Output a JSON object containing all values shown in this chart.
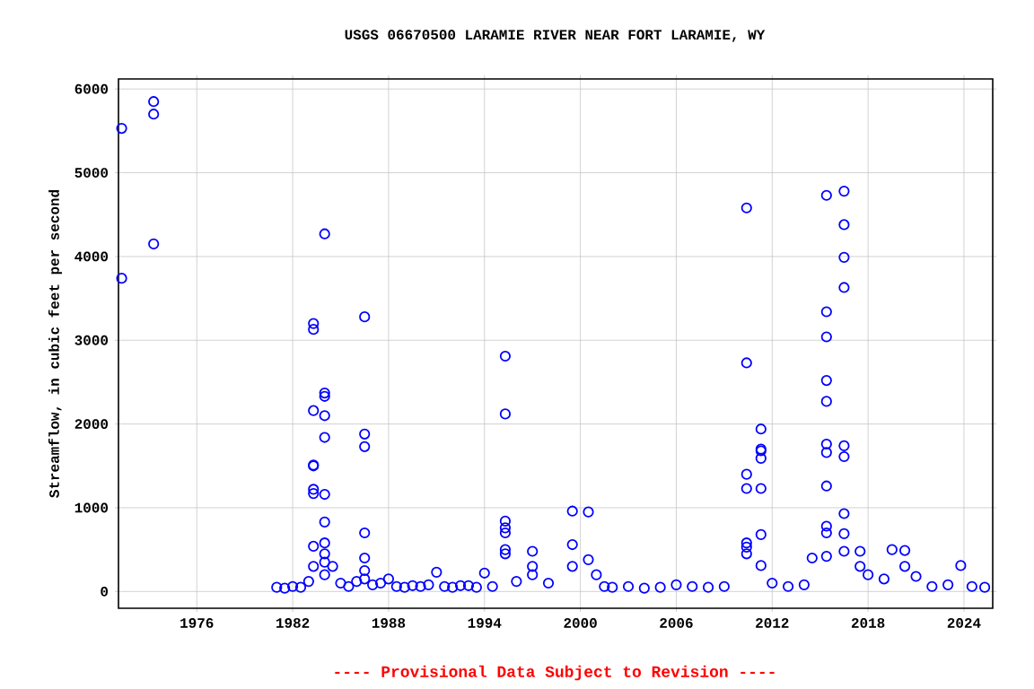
{
  "chart_data": {
    "type": "scatter",
    "title": "USGS 06670500 LARAMIE RIVER NEAR FORT LARAMIE, WY",
    "ylabel": "Streamflow, in cubic feet per second",
    "annotations": [
      "---- Provisional Data Subject to Revision ----"
    ],
    "xlim": [
      1971.1,
      2025.8
    ],
    "ylim": [
      -200,
      6120
    ],
    "xticks": [
      1976,
      1982,
      1988,
      1994,
      2000,
      2006,
      2012,
      2018,
      2024
    ],
    "yticks": [
      0,
      1000,
      2000,
      3000,
      4000,
      5000,
      6000
    ],
    "grid": true,
    "marker": "circle",
    "series": [
      {
        "color": "#0000ff",
        "x": [
          1971.3,
          1971.3,
          1973.3,
          1973.3,
          1973.3,
          1981.0,
          1981.5,
          1982.0,
          1982.5,
          1983.0,
          1983.3,
          1983.3,
          1983.3,
          1983.3,
          1983.3,
          1983.3,
          1983.3,
          1983.3,
          1983.3,
          1984.0,
          1984.0,
          1984.0,
          1984.0,
          1984.0,
          1984.0,
          1984.0,
          1984.0,
          1984.0,
          1984.0,
          1984.0,
          1984.5,
          1985.0,
          1985.5,
          1986.0,
          1986.5,
          1986.5,
          1986.5,
          1986.5,
          1986.5,
          1986.5,
          1986.5,
          1987.0,
          1987.5,
          1988.0,
          1988.5,
          1989.0,
          1989.5,
          1990.0,
          1990.5,
          1991.0,
          1991.5,
          1992.0,
          1992.5,
          1993.0,
          1993.5,
          1994.0,
          1994.5,
          1995.3,
          1995.3,
          1995.3,
          1995.3,
          1995.3,
          1995.3,
          1995.3,
          1996.0,
          1997.0,
          1997.0,
          1997.0,
          1998.0,
          1999.5,
          1999.5,
          1999.5,
          2000.5,
          2000.5,
          2001.0,
          2001.5,
          2002.0,
          2003.0,
          2004.0,
          2005.0,
          2006.0,
          2007.0,
          2008.0,
          2009.0,
          2010.4,
          2010.4,
          2010.4,
          2010.4,
          2010.4,
          2010.4,
          2010.4,
          2011.3,
          2011.3,
          2011.3,
          2011.3,
          2011.3,
          2011.3,
          2011.3,
          2012.0,
          2013.0,
          2014.0,
          2014.5,
          2015.4,
          2015.4,
          2015.4,
          2015.4,
          2015.4,
          2015.4,
          2015.4,
          2015.4,
          2015.4,
          2015.4,
          2015.4,
          2016.5,
          2016.5,
          2016.5,
          2016.5,
          2016.5,
          2016.5,
          2016.5,
          2016.5,
          2016.5,
          2017.5,
          2017.5,
          2018.0,
          2019.0,
          2019.5,
          2020.3,
          2020.3,
          2021.0,
          2022.0,
          2023.0,
          2023.8,
          2024.5,
          2025.3
        ],
        "values": [
          5530,
          3740,
          5850,
          5700,
          4150,
          50,
          40,
          60,
          50,
          120,
          3200,
          3130,
          2160,
          1500,
          1510,
          1220,
          1170,
          540,
          300,
          4270,
          2370,
          2330,
          2100,
          1840,
          1160,
          830,
          580,
          450,
          350,
          200,
          300,
          100,
          60,
          120,
          3280,
          1880,
          1730,
          700,
          400,
          250,
          150,
          80,
          100,
          150,
          60,
          50,
          70,
          60,
          80,
          230,
          60,
          50,
          70,
          70,
          50,
          220,
          60,
          2810,
          2120,
          840,
          760,
          700,
          500,
          450,
          120,
          480,
          300,
          200,
          100,
          960,
          560,
          300,
          950,
          380,
          200,
          60,
          50,
          60,
          40,
          50,
          80,
          60,
          50,
          60,
          4580,
          2730,
          1400,
          1230,
          580,
          530,
          450,
          1940,
          1700,
          1680,
          1590,
          1230,
          680,
          310,
          100,
          60,
          80,
          400,
          4730,
          3340,
          3040,
          2520,
          2270,
          1760,
          1660,
          1260,
          780,
          700,
          420,
          4780,
          4380,
          3990,
          3630,
          1740,
          1610,
          930,
          690,
          480,
          480,
          300,
          200,
          150,
          500,
          490,
          300,
          180,
          60,
          80,
          310,
          60,
          50
        ]
      }
    ]
  }
}
